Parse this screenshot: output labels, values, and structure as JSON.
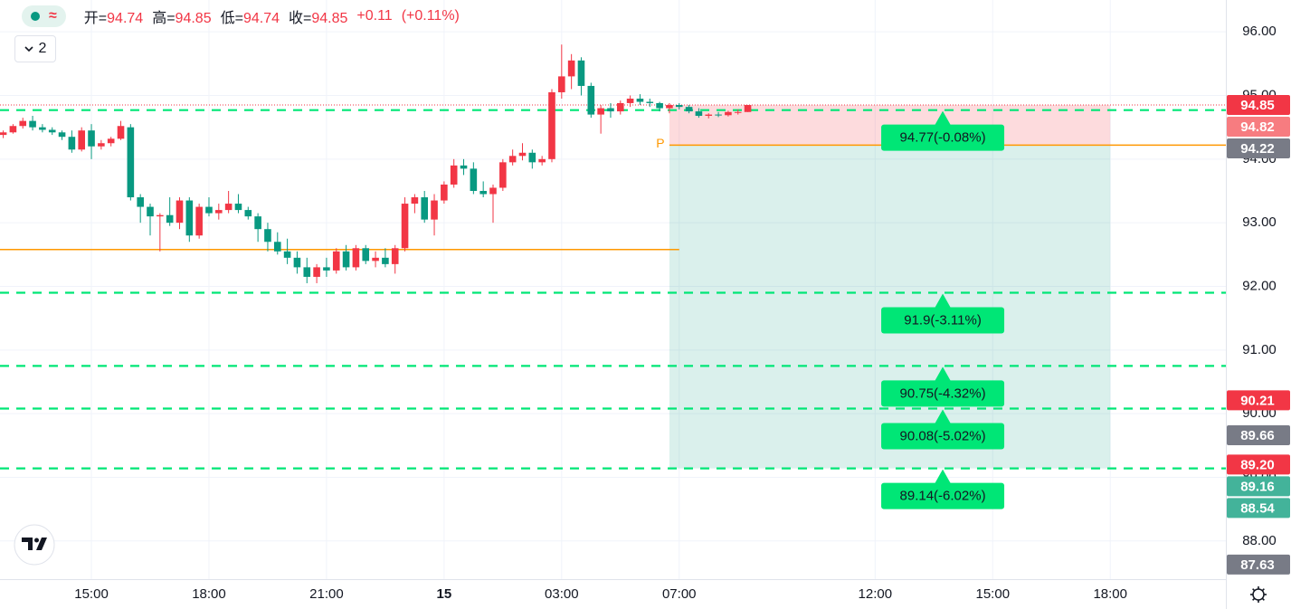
{
  "header": {
    "ohlc": [
      {
        "name": "开=",
        "value": "94.74"
      },
      {
        "name": "高=",
        "value": "94.85"
      },
      {
        "name": "低=",
        "value": "94.74"
      },
      {
        "name": "收=",
        "value": "94.85"
      }
    ],
    "change": "+0.11",
    "change_pct": "(+0.11%)",
    "indicator_count": "2"
  },
  "chart_data": {
    "type": "candlestick",
    "up_color": "#f23645",
    "down_color": "#089981",
    "x": [
      -9,
      -8,
      -7,
      -6,
      -5,
      -4,
      -3,
      -2,
      -1,
      0,
      1,
      2,
      3,
      4,
      5,
      6,
      7,
      8,
      9,
      10,
      11,
      12,
      13,
      14,
      15,
      16,
      17,
      18,
      19,
      20,
      21,
      22,
      23,
      24,
      25,
      26,
      27,
      28,
      29,
      30,
      31,
      32,
      33,
      34,
      35,
      36,
      37,
      38,
      39,
      40,
      41,
      42,
      43,
      44,
      45,
      46,
      47,
      48,
      49,
      50,
      51,
      52,
      53,
      54,
      55,
      56,
      57,
      58,
      59,
      60,
      61,
      62,
      63,
      64,
      65,
      66,
      67
    ],
    "ohlc": [
      [
        94.38,
        94.45,
        94.33,
        94.42
      ],
      [
        94.42,
        94.55,
        94.4,
        94.52
      ],
      [
        94.52,
        94.65,
        94.48,
        94.6
      ],
      [
        94.6,
        94.68,
        94.45,
        94.5
      ],
      [
        94.5,
        94.55,
        94.42,
        94.46
      ],
      [
        94.46,
        94.5,
        94.38,
        94.42
      ],
      [
        94.42,
        94.45,
        94.3,
        94.35
      ],
      [
        94.35,
        94.45,
        94.1,
        94.15
      ],
      [
        94.15,
        94.5,
        94.12,
        94.45
      ],
      [
        94.45,
        94.55,
        94.0,
        94.2
      ],
      [
        94.2,
        94.3,
        94.15,
        94.25
      ],
      [
        94.25,
        94.35,
        94.2,
        94.32
      ],
      [
        94.32,
        94.6,
        94.3,
        94.52
      ],
      [
        94.5,
        94.55,
        93.35,
        93.4
      ],
      [
        93.4,
        93.45,
        93.0,
        93.25
      ],
      [
        93.25,
        93.3,
        92.8,
        93.1
      ],
      [
        93.1,
        93.15,
        92.55,
        93.12
      ],
      [
        93.12,
        93.4,
        92.95,
        93.0
      ],
      [
        93.0,
        93.4,
        92.9,
        93.35
      ],
      [
        93.35,
        93.4,
        92.7,
        92.8
      ],
      [
        92.8,
        93.3,
        92.75,
        93.25
      ],
      [
        93.25,
        93.4,
        93.1,
        93.15
      ],
      [
        93.15,
        93.3,
        93.05,
        93.2
      ],
      [
        93.2,
        93.5,
        93.15,
        93.3
      ],
      [
        93.3,
        93.45,
        93.15,
        93.2
      ],
      [
        93.2,
        93.25,
        93.05,
        93.1
      ],
      [
        93.1,
        93.15,
        92.7,
        92.9
      ],
      [
        92.9,
        93.0,
        92.55,
        92.7
      ],
      [
        92.7,
        92.85,
        92.5,
        92.55
      ],
      [
        92.55,
        92.75,
        92.35,
        92.45
      ],
      [
        92.45,
        92.55,
        92.2,
        92.3
      ],
      [
        92.3,
        92.45,
        92.05,
        92.15
      ],
      [
        92.15,
        92.35,
        92.05,
        92.3
      ],
      [
        92.3,
        92.45,
        92.15,
        92.25
      ],
      [
        92.25,
        92.6,
        92.2,
        92.55
      ],
      [
        92.55,
        92.65,
        92.25,
        92.3
      ],
      [
        92.3,
        92.65,
        92.25,
        92.6
      ],
      [
        92.6,
        92.65,
        92.35,
        92.4
      ],
      [
        92.4,
        92.55,
        92.3,
        92.45
      ],
      [
        92.45,
        92.6,
        92.3,
        92.35
      ],
      [
        92.35,
        92.65,
        92.2,
        92.6
      ],
      [
        92.6,
        93.4,
        92.55,
        93.3
      ],
      [
        93.3,
        93.45,
        93.15,
        93.4
      ],
      [
        93.4,
        93.5,
        93.0,
        93.05
      ],
      [
        93.05,
        93.45,
        92.8,
        93.35
      ],
      [
        93.35,
        93.65,
        93.3,
        93.6
      ],
      [
        93.6,
        94.0,
        93.55,
        93.9
      ],
      [
        93.9,
        94.0,
        93.75,
        93.85
      ],
      [
        93.85,
        93.95,
        93.45,
        93.5
      ],
      [
        93.5,
        93.65,
        93.4,
        93.45
      ],
      [
        93.45,
        93.6,
        93.0,
        93.55
      ],
      [
        93.55,
        94.0,
        93.5,
        93.95
      ],
      [
        93.95,
        94.15,
        93.9,
        94.05
      ],
      [
        94.05,
        94.25,
        93.98,
        94.1
      ],
      [
        94.1,
        94.15,
        93.85,
        93.95
      ],
      [
        93.95,
        94.05,
        93.9,
        94.0
      ],
      [
        94.0,
        95.1,
        93.95,
        95.05
      ],
      [
        95.05,
        95.8,
        94.95,
        95.3
      ],
      [
        95.3,
        95.65,
        95.1,
        95.55
      ],
      [
        95.55,
        95.6,
        95.0,
        95.15
      ],
      [
        95.15,
        95.2,
        94.65,
        94.7
      ],
      [
        94.7,
        94.85,
        94.4,
        94.8
      ],
      [
        94.8,
        94.88,
        94.65,
        94.75
      ],
      [
        94.75,
        94.92,
        94.7,
        94.88
      ],
      [
        94.88,
        95.0,
        94.82,
        94.95
      ],
      [
        94.95,
        95.02,
        94.85,
        94.9
      ],
      [
        94.9,
        94.95,
        94.82,
        94.88
      ],
      [
        94.88,
        94.9,
        94.75,
        94.8
      ],
      [
        94.8,
        94.88,
        94.72,
        94.85
      ],
      [
        94.85,
        94.88,
        94.78,
        94.82
      ],
      [
        94.82,
        94.85,
        94.72,
        94.75
      ],
      [
        94.75,
        94.8,
        94.65,
        94.68
      ],
      [
        94.68,
        94.72,
        94.64,
        94.7
      ],
      [
        94.7,
        94.74,
        94.66,
        94.69
      ],
      [
        94.69,
        94.76,
        94.67,
        94.74
      ],
      [
        94.74,
        94.78,
        94.7,
        94.74
      ],
      [
        94.74,
        94.85,
        94.74,
        94.85
      ]
    ],
    "xlim": [
      -9.33,
      115.8
    ],
    "ylim": [
      87.4,
      96.5
    ],
    "xticks": [
      {
        "value": 0,
        "label": "15:00"
      },
      {
        "value": 12,
        "label": "18:00"
      },
      {
        "value": 24,
        "label": "21:00"
      },
      {
        "value": 36,
        "label": "15"
      },
      {
        "value": 48,
        "label": "03:00"
      },
      {
        "value": 60,
        "label": "07:00"
      },
      {
        "value": 80,
        "label": "12:00"
      },
      {
        "value": 92,
        "label": "15:00"
      },
      {
        "value": 104,
        "label": "18:00"
      }
    ],
    "yticks": [
      {
        "value": 96,
        "label": "96.00"
      },
      {
        "value": 95,
        "label": "95.00"
      },
      {
        "value": 94,
        "label": "94.00"
      },
      {
        "value": 93,
        "label": "93.00"
      },
      {
        "value": 92,
        "label": "92.00"
      },
      {
        "value": 91,
        "label": "91.00"
      },
      {
        "value": 90,
        "label": "90.00"
      },
      {
        "value": 89,
        "label": "89.00"
      },
      {
        "value": 88,
        "label": "88.00"
      }
    ],
    "grid": true,
    "last_price": 94.85,
    "support_line": {
      "value": 92.58,
      "x": [
        -9.33,
        60
      ],
      "color": "#ff9800"
    },
    "position": {
      "entry": 94.22,
      "stop": 94.85,
      "target": 89.14,
      "x": [
        59,
        104
      ],
      "marker": "P",
      "color": "#ff9800"
    },
    "levels": {
      "color": "#00e676",
      "items": [
        {
          "value": 94.77,
          "label": "94.77(-0.08%)"
        },
        {
          "value": 91.9,
          "label": "91.9(-3.11%)"
        },
        {
          "value": 90.75,
          "label": "90.75(-4.32%)"
        },
        {
          "value": 90.08,
          "label": "90.08(-5.02%)"
        },
        {
          "value": 89.14,
          "label": "89.14(-6.02%)"
        }
      ]
    },
    "price_tags": [
      {
        "value": 94.85,
        "label": "94.85",
        "color": "#f23645"
      },
      {
        "value": 94.82,
        "label": "94.82",
        "color": "#f77c80"
      },
      {
        "value": 94.22,
        "label": "94.22",
        "color": "#787b86"
      },
      {
        "value": 90.21,
        "label": "90.21",
        "color": "#f23645"
      },
      {
        "value": 89.66,
        "label": "89.66",
        "color": "#787b86"
      },
      {
        "value": 89.2,
        "label": "89.20",
        "color": "#f23645"
      },
      {
        "value": 89.16,
        "label": "89.16",
        "color": "#43b39a"
      },
      {
        "value": 88.54,
        "label": "88.54",
        "color": "#43b39a"
      },
      {
        "value": 87.63,
        "label": "87.63",
        "color": "#787b86"
      }
    ]
  }
}
